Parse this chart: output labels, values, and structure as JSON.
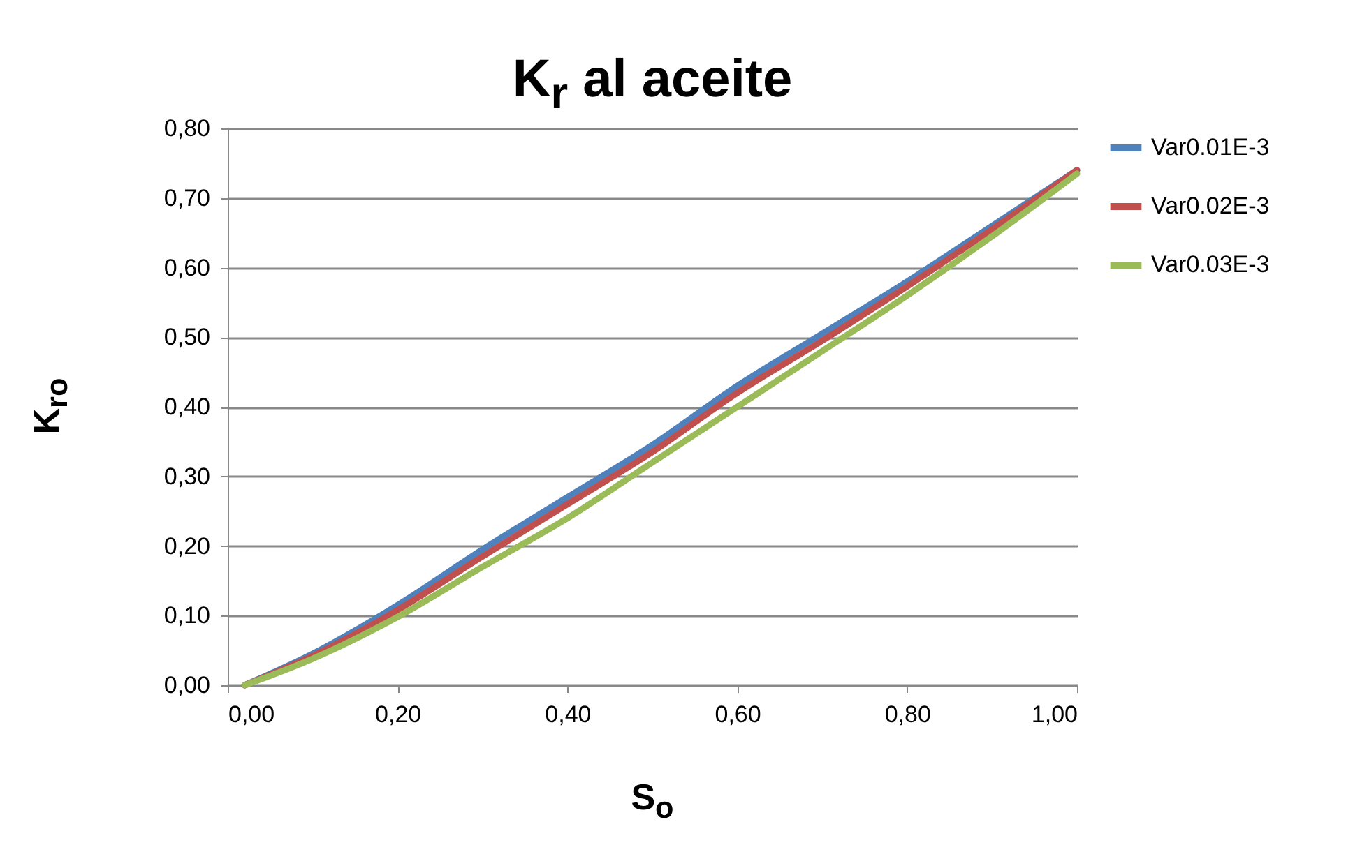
{
  "chart_data": {
    "type": "line",
    "title": "K$_{r}$ al aceite",
    "xlabel": "S$_{o}$",
    "ylabel": "K$_{ro}$",
    "x": [
      0.02,
      0.1,
      0.2,
      0.3,
      0.4,
      0.5,
      0.6,
      0.7,
      0.8,
      0.9,
      1.0
    ],
    "series": [
      {
        "name": "Var0.01E-3",
        "color": "#4f81bd",
        "values": [
          0,
          0.045,
          0.115,
          0.195,
          0.27,
          0.345,
          0.43,
          0.505,
          0.58,
          0.66,
          0.74
        ]
      },
      {
        "name": "Var0.02E-3",
        "color": "#c0504d",
        "values": [
          0,
          0.042,
          0.108,
          0.185,
          0.26,
          0.335,
          0.42,
          0.495,
          0.573,
          0.655,
          0.74
        ]
      },
      {
        "name": "Var0.03E-3",
        "color": "#9bbb59",
        "values": [
          0,
          0.038,
          0.098,
          0.17,
          0.24,
          0.32,
          0.4,
          0.48,
          0.56,
          0.645,
          0.735
        ]
      }
    ],
    "xlim": [
      0,
      1
    ],
    "ylim": [
      0,
      0.8
    ],
    "xticks": [
      {
        "value": 0,
        "label": "0,00"
      },
      {
        "value": 0.2,
        "label": "0,20"
      },
      {
        "value": 0.4,
        "label": "0,40"
      },
      {
        "value": 0.6,
        "label": "0,60"
      },
      {
        "value": 0.8,
        "label": "0,80"
      },
      {
        "value": 1,
        "label": "1,00"
      }
    ],
    "yticks": [
      {
        "value": 0,
        "label": "0,00"
      },
      {
        "value": 0.1,
        "label": "0,10"
      },
      {
        "value": 0.2,
        "label": "0,20"
      },
      {
        "value": 0.3,
        "label": "0,30"
      },
      {
        "value": 0.4,
        "label": "0,40"
      },
      {
        "value": 0.5,
        "label": "0,50"
      },
      {
        "value": 0.6,
        "label": "0,60"
      },
      {
        "value": 0.7,
        "label": "0,70"
      },
      {
        "value": 0.8,
        "label": "0,80"
      }
    ],
    "grid": "y",
    "legend": "right",
    "marker": "none",
    "line_style": "solid"
  }
}
